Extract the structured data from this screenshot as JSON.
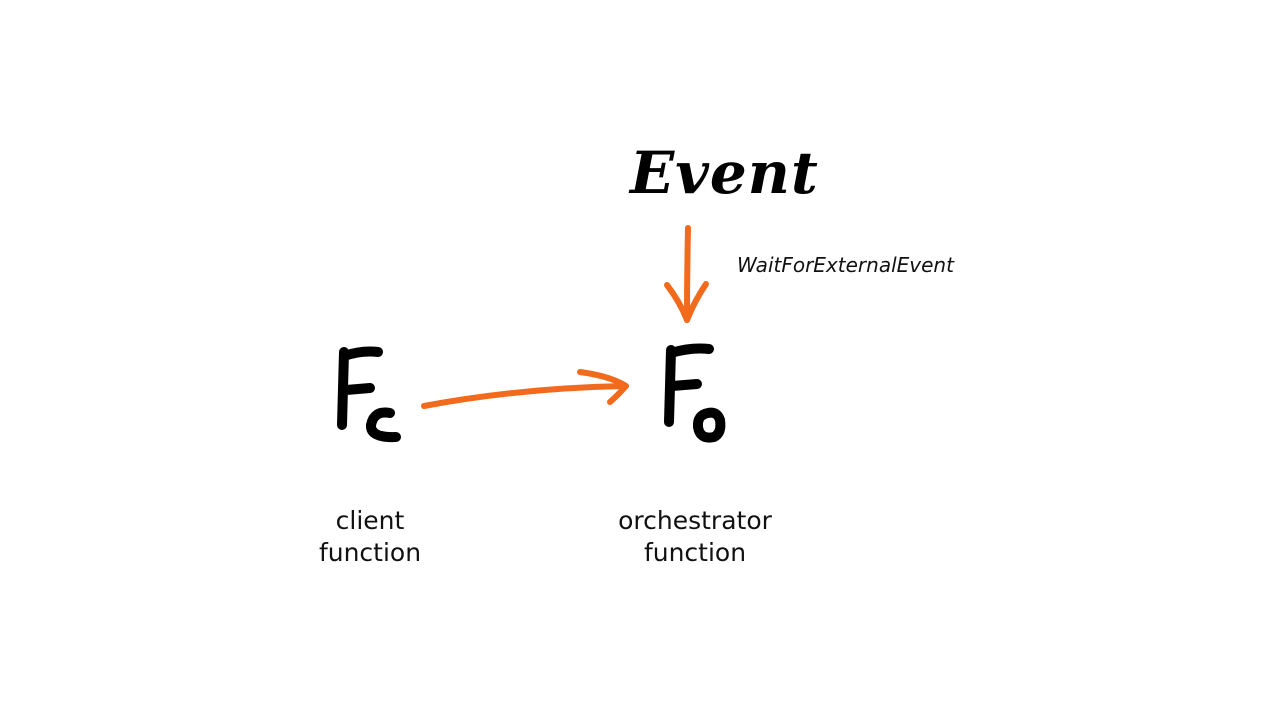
{
  "diagram": {
    "event_label": "Event",
    "api_label": "WaitForExternalEvent",
    "client_caption": [
      "client",
      "function"
    ],
    "orchestrator_caption": [
      "orchestrator",
      "function"
    ],
    "colors": {
      "arrow": "#f26a1b",
      "ink": "#000000",
      "background": "#ffffff"
    },
    "symbols": {
      "client": "F-c",
      "orchestrator": "F-o"
    }
  }
}
